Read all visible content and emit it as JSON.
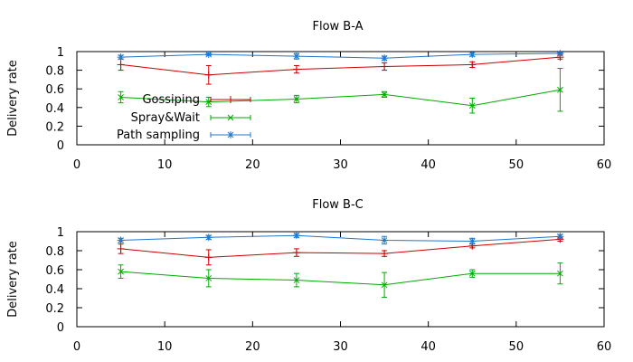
{
  "chart_data": [
    {
      "type": "line",
      "title": "Flow B-A",
      "xlabel": "",
      "ylabel": "Delivery rate",
      "xlim": [
        0,
        60
      ],
      "ylim": [
        0,
        1
      ],
      "x_ticks": [
        "0",
        "10",
        "20",
        "30",
        "40",
        "50",
        "60"
      ],
      "y_ticks": [
        "0",
        "0.2",
        "0.4",
        "0.6",
        "0.8",
        "1"
      ],
      "grid": false,
      "legend_position": "bottom-left",
      "x": [
        5,
        15,
        25,
        35,
        45,
        55
      ],
      "series": [
        {
          "name": "Gossiping",
          "color": "#cc0000",
          "marker": "plus",
          "values": [
            0.86,
            0.75,
            0.81,
            0.84,
            0.86,
            0.94
          ],
          "errors": [
            0.06,
            0.1,
            0.04,
            0.04,
            0.03,
            0.02
          ]
        },
        {
          "name": "Spray&Wait",
          "color": "#00aa00",
          "marker": "x",
          "values": [
            0.51,
            0.46,
            0.49,
            0.54,
            0.42,
            0.59
          ],
          "errors": [
            0.06,
            0.05,
            0.04,
            0.03,
            0.08,
            0.23
          ]
        },
        {
          "name": "Path sampling",
          "color": "#1f77cc",
          "marker": "star",
          "values": [
            0.94,
            0.97,
            0.95,
            0.93,
            0.97,
            0.98
          ],
          "errors": [
            0.02,
            0.01,
            0.03,
            0.02,
            0.02,
            0.01
          ]
        }
      ]
    },
    {
      "type": "line",
      "title": "Flow B-C",
      "xlabel": "",
      "ylabel": "Delivery rate",
      "xlim": [
        0,
        60
      ],
      "ylim": [
        0,
        1
      ],
      "x_ticks": [
        "0",
        "10",
        "20",
        "30",
        "40",
        "50",
        "60"
      ],
      "y_ticks": [
        "0",
        "0.2",
        "0.4",
        "0.6",
        "0.8",
        "1"
      ],
      "grid": false,
      "x": [
        5,
        15,
        25,
        35,
        45,
        55
      ],
      "series": [
        {
          "color": "#cc0000",
          "marker": "plus",
          "values": [
            0.82,
            0.73,
            0.78,
            0.77,
            0.85,
            0.92
          ],
          "errors": [
            0.05,
            0.08,
            0.04,
            0.03,
            0.02,
            0.02
          ]
        },
        {
          "color": "#00aa00",
          "marker": "x",
          "values": [
            0.58,
            0.51,
            0.49,
            0.44,
            0.56,
            0.56
          ],
          "errors": [
            0.07,
            0.09,
            0.07,
            0.13,
            0.04,
            0.11
          ]
        },
        {
          "color": "#1f77cc",
          "marker": "star",
          "values": [
            0.91,
            0.94,
            0.96,
            0.91,
            0.9,
            0.95
          ],
          "errors": [
            0.02,
            0.02,
            0.02,
            0.04,
            0.03,
            0.02
          ]
        }
      ]
    }
  ]
}
